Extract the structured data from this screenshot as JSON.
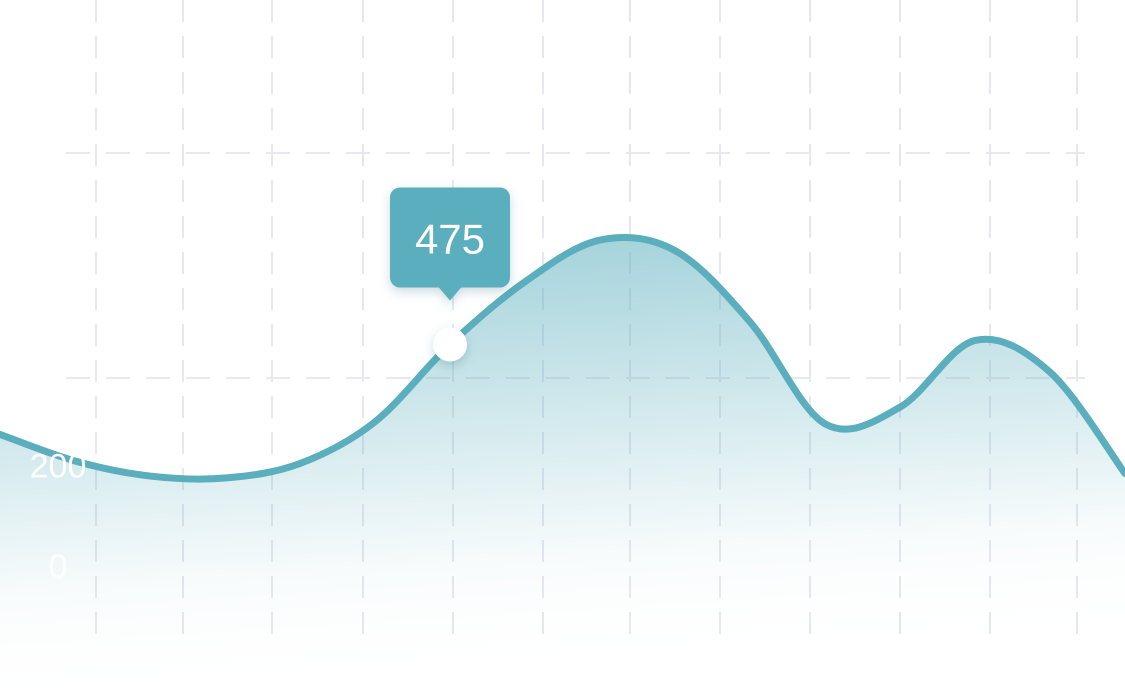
{
  "chart_data": {
    "type": "area",
    "categories": [
      null,
      null,
      null,
      null,
      null,
      null,
      null,
      null,
      null,
      null,
      null,
      null,
      null,
      null,
      null,
      null
    ],
    "series": [
      {
        "color": "#5aaebd",
        "values": [
          296,
          243,
          213,
          209,
          238,
          321,
          475,
          600,
          683,
          662,
          520,
          317,
          350,
          483,
          420,
          218
        ]
      }
    ],
    "highlight_index": 6,
    "ylim": [
      0,
      1161
    ],
    "yticks": [
      0,
      200
    ],
    "grid": true
  }
}
